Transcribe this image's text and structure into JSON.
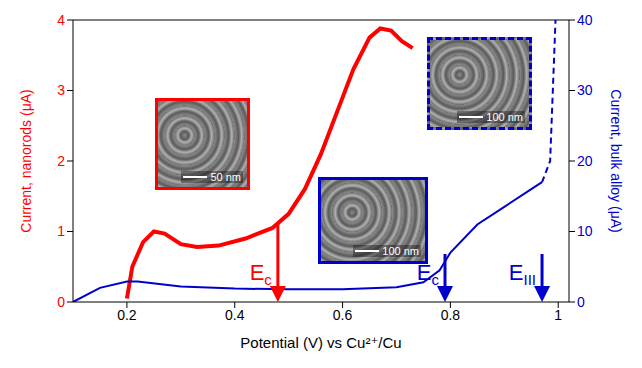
{
  "chart_data": {
    "type": "line",
    "xlabel": "Potential (V) vs Cu²⁺/Cu",
    "ylabel": "Current, nanorods (μA)",
    "y2label": "Current, bulk alloy (μA)",
    "xlim": [
      0.1,
      1.02
    ],
    "xticks": [
      0.2,
      0.4,
      0.6,
      0.8,
      1
    ],
    "ylim": [
      0,
      4
    ],
    "yticks": [
      0,
      1,
      2,
      3,
      4
    ],
    "y2lim": [
      0,
      40
    ],
    "y2ticks": [
      0,
      10,
      20,
      30,
      40
    ],
    "series": [
      {
        "color": "#ff0000",
        "x": [
          0.2,
          0.21,
          0.23,
          0.25,
          0.27,
          0.3,
          0.33,
          0.37,
          0.42,
          0.47,
          0.5,
          0.53,
          0.56,
          0.59,
          0.62,
          0.65,
          0.67,
          0.69,
          0.71,
          0.73
        ],
        "values": [
          0.05,
          0.5,
          0.85,
          1.0,
          0.97,
          0.82,
          0.78,
          0.8,
          0.9,
          1.05,
          1.25,
          1.6,
          2.1,
          2.7,
          3.3,
          3.75,
          3.88,
          3.85,
          3.7,
          3.6
        ]
      },
      {
        "color": "#0000cc",
        "axis": "y2",
        "x": [
          0.1,
          0.15,
          0.2,
          0.22,
          0.3,
          0.4,
          0.5,
          0.6,
          0.7,
          0.75,
          0.78,
          0.8,
          0.85,
          0.9,
          0.95,
          0.97
        ],
        "values": [
          0,
          2,
          2.9,
          2.9,
          2.2,
          1.9,
          1.8,
          1.8,
          2.1,
          2.8,
          4.5,
          7,
          11,
          13.5,
          16,
          17
        ]
      },
      {
        "color": "#0000cc",
        "axis": "y2",
        "line_style": "dashed",
        "x": [
          0.97,
          0.975,
          0.985,
          0.99,
          0.995
        ],
        "values": [
          17,
          18,
          20,
          30,
          40
        ]
      }
    ],
    "annotations": [
      {
        "text": "Ec",
        "x": 0.48,
        "color": "#ff0000"
      },
      {
        "text": "Ec",
        "x": 0.79,
        "color": "#0000cc"
      },
      {
        "text": "EIII",
        "x": 0.97,
        "color": "#0000cc"
      }
    ],
    "insets": [
      {
        "label": "50 nm",
        "color": "#ff0000"
      },
      {
        "label": "100 nm",
        "color": "#0000cc"
      },
      {
        "label": "100 nm",
        "color": "#0000cc",
        "line_style": "dashed"
      }
    ]
  }
}
